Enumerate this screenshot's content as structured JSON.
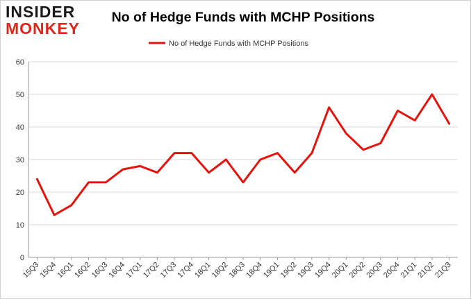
{
  "logo": {
    "line1": "INSIDER",
    "line2": "MONKEY"
  },
  "colors": {
    "series": "#e8120c",
    "grid": "#d9d9d9",
    "logo_red": "#e0261b"
  },
  "chart_data": {
    "type": "line",
    "title": "No of Hedge Funds with MCHP Positions",
    "xlabel": "",
    "ylabel": "",
    "ylim": [
      0,
      60
    ],
    "yticks": [
      0,
      10,
      20,
      30,
      40,
      50,
      60
    ],
    "grid": true,
    "legend_position": "top-center",
    "categories": [
      "15Q3",
      "15Q4",
      "16Q1",
      "16Q2",
      "16Q3",
      "16Q4",
      "17Q1",
      "17Q2",
      "17Q3",
      "17Q4",
      "18Q1",
      "18Q2",
      "18Q3",
      "18Q4",
      "19Q1",
      "19Q2",
      "19Q3",
      "19Q4",
      "20Q1",
      "20Q2",
      "20Q3",
      "20Q4",
      "21Q1",
      "21Q2",
      "21Q3"
    ],
    "series": [
      {
        "name": "No of Hedge Funds with MCHP Positions",
        "values": [
          24,
          13,
          16,
          23,
          23,
          27,
          28,
          26,
          32,
          32,
          26,
          30,
          23,
          30,
          32,
          26,
          32,
          46,
          38,
          33,
          35,
          45,
          42,
          50,
          41
        ]
      }
    ]
  }
}
